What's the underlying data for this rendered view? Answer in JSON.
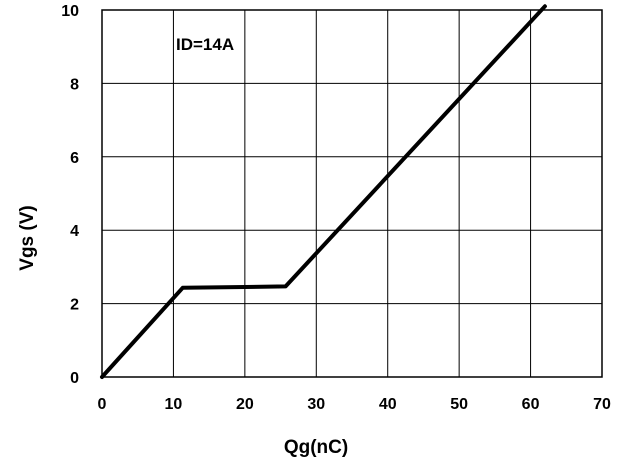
{
  "chart_data": {
    "type": "line",
    "title": "",
    "xlabel": "Qg(nC)",
    "ylabel": "Vgs (V)",
    "xlim": [
      0,
      70
    ],
    "ylim": [
      0,
      10
    ],
    "xticks": [
      0,
      10,
      20,
      30,
      40,
      50,
      60,
      70
    ],
    "yticks": [
      0,
      2,
      4,
      6,
      8,
      10
    ],
    "grid": true,
    "annotation": "ID=14A",
    "series": [
      {
        "x": [
          0,
          11.3,
          25.7,
          62
        ],
        "y": [
          0,
          2.43,
          2.47,
          10.1
        ],
        "color": "#000000"
      }
    ]
  }
}
